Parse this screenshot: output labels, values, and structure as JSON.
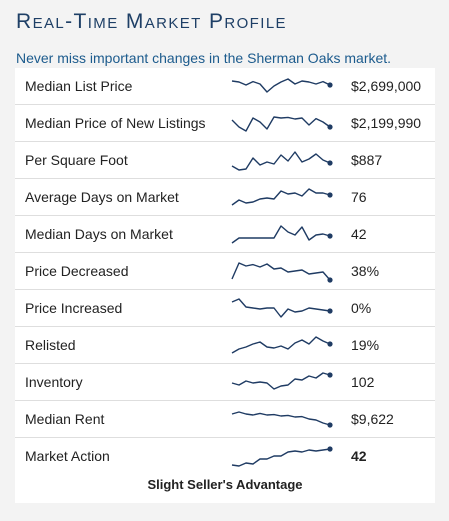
{
  "header": {
    "title": "Real-Time Market Profile",
    "subtitle": "Never miss important changes in the Sherman Oaks market."
  },
  "metrics": [
    {
      "label": "Median List Price",
      "value": "$2,699,000",
      "trend": [
        0.75,
        0.7,
        0.55,
        0.72,
        0.6,
        0.2,
        0.5,
        0.7,
        0.85,
        0.6,
        0.75,
        0.7,
        0.6,
        0.72,
        0.55
      ]
    },
    {
      "label": "Median Price of New Listings",
      "value": "$2,199,990",
      "trend": [
        0.65,
        0.3,
        0.1,
        0.75,
        0.55,
        0.2,
        0.8,
        0.75,
        0.78,
        0.7,
        0.75,
        0.4,
        0.72,
        0.55,
        0.3
      ]
    },
    {
      "label": "Per Square Foot",
      "value": "$887",
      "trend": [
        0.2,
        0.0,
        0.05,
        0.6,
        0.25,
        0.4,
        0.3,
        0.75,
        0.45,
        0.9,
        0.4,
        0.55,
        0.8,
        0.5,
        0.35
      ]
    },
    {
      "label": "Average Days on Market",
      "value": "76",
      "trend": [
        0.1,
        0.35,
        0.2,
        0.25,
        0.4,
        0.45,
        0.4,
        0.8,
        0.65,
        0.7,
        0.55,
        0.9,
        0.7,
        0.7,
        0.6
      ]
    },
    {
      "label": "Median Days on Market",
      "value": "42",
      "trend": [
        0.05,
        0.3,
        0.3,
        0.3,
        0.3,
        0.3,
        0.3,
        0.9,
        0.6,
        0.45,
        0.85,
        0.2,
        0.45,
        0.5,
        0.4
      ]
    },
    {
      "label": "Price Decreased",
      "value": "38%",
      "trend": [
        0.1,
        0.9,
        0.75,
        0.82,
        0.7,
        0.85,
        0.6,
        0.65,
        0.45,
        0.5,
        0.55,
        0.35,
        0.4,
        0.45,
        0.05
      ]
    },
    {
      "label": "Price Increased",
      "value": "0%",
      "trend": [
        0.8,
        0.95,
        0.55,
        0.5,
        0.45,
        0.5,
        0.5,
        0.05,
        0.45,
        0.3,
        0.35,
        0.5,
        0.45,
        0.4,
        0.35
      ]
    },
    {
      "label": "Relisted",
      "value": "19%",
      "trend": [
        0.1,
        0.3,
        0.4,
        0.55,
        0.65,
        0.4,
        0.35,
        0.45,
        0.3,
        0.6,
        0.75,
        0.55,
        0.9,
        0.7,
        0.55
      ]
    },
    {
      "label": "Inventory",
      "value": "102",
      "trend": [
        0.45,
        0.35,
        0.55,
        0.45,
        0.5,
        0.45,
        0.15,
        0.3,
        0.35,
        0.65,
        0.6,
        0.8,
        0.7,
        0.95,
        0.85
      ]
    },
    {
      "label": "Median Rent",
      "value": "$9,622",
      "trend": [
        0.75,
        0.85,
        0.75,
        0.7,
        0.78,
        0.7,
        0.72,
        0.65,
        0.68,
        0.6,
        0.62,
        0.5,
        0.45,
        0.3,
        0.2
      ]
    },
    {
      "label": "Market Action",
      "value": "42",
      "bold": true,
      "trend": [
        0.05,
        0.0,
        0.15,
        0.1,
        0.35,
        0.35,
        0.5,
        0.5,
        0.7,
        0.75,
        0.7,
        0.8,
        0.75,
        0.8,
        0.85
      ]
    }
  ],
  "verdict": "Slight Seller's Advantage",
  "colors": {
    "title": "#1e3f66",
    "subtitle": "#1c5b8d",
    "sparkline": "#1f3b63"
  }
}
